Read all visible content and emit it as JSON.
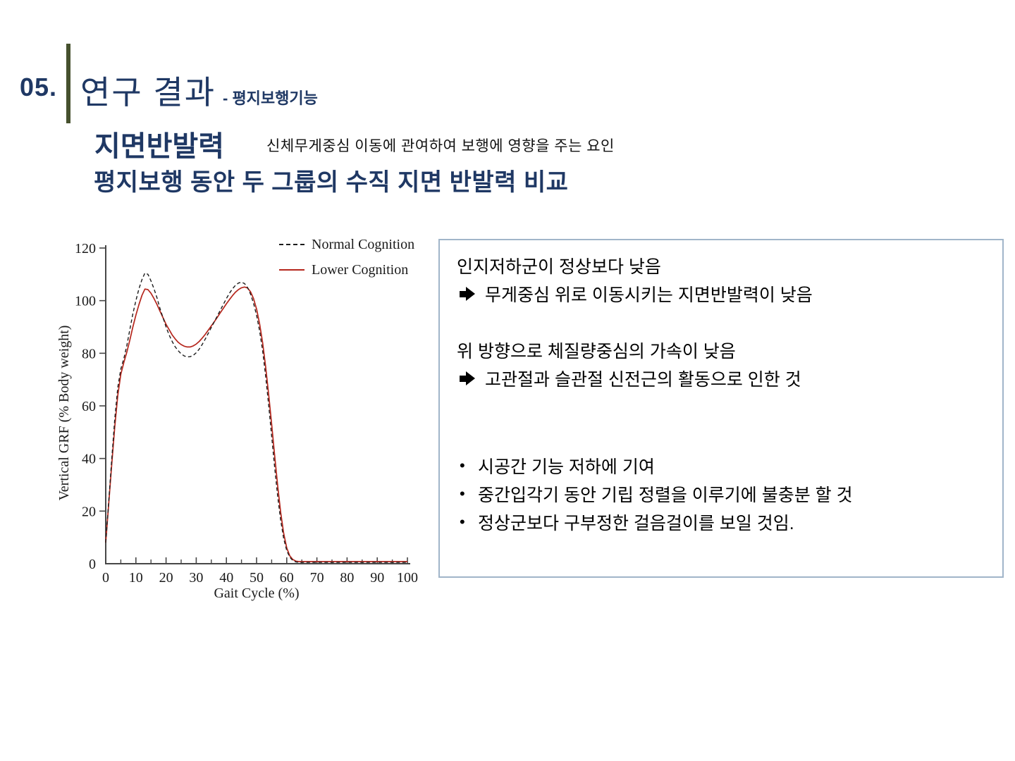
{
  "header": {
    "number": "05.",
    "title": "연구 결과",
    "subtitle": "- 평지보행기능"
  },
  "section": {
    "keyword": "지면반발력",
    "note": "신체무게중심 이동에 관여하여 보행에 영향을 주는 요인",
    "subtitle": "평지보행 동안 두 그룹의 수직 지면 반발력 비교"
  },
  "colors": {
    "navy": "#1f3864",
    "olive_bar": "#46512e",
    "axis": "#474747",
    "normal_line": "#1c1c1c",
    "lower_line": "#b5261c",
    "box_border": "#a1b5c9"
  },
  "chart_data": {
    "type": "line",
    "title": "",
    "xlabel": "Gait Cycle (%)",
    "ylabel": "Vertical GRF (% Body weight)",
    "xlim": [
      0,
      100
    ],
    "ylim": [
      0,
      120
    ],
    "x_ticks": [
      0,
      10,
      20,
      30,
      40,
      50,
      60,
      70,
      80,
      90,
      100
    ],
    "x_minor_step": 5,
    "y_ticks": [
      0,
      20,
      40,
      60,
      80,
      100,
      120
    ],
    "grid": false,
    "legend_position": "top-right",
    "series": [
      {
        "name": "Normal Cognition",
        "style": "dashed",
        "color": "#1c1c1c",
        "points": [
          [
            0,
            8
          ],
          [
            1,
            24
          ],
          [
            2,
            40
          ],
          [
            3,
            55
          ],
          [
            4,
            67
          ],
          [
            5,
            74
          ],
          [
            6,
            78
          ],
          [
            7,
            83
          ],
          [
            8,
            89
          ],
          [
            9,
            95
          ],
          [
            10,
            100
          ],
          [
            11,
            104.5
          ],
          [
            12,
            108
          ],
          [
            13,
            110.5
          ],
          [
            14,
            110
          ],
          [
            15,
            107.5
          ],
          [
            16,
            104.5
          ],
          [
            17,
            101
          ],
          [
            18,
            97
          ],
          [
            19,
            93.5
          ],
          [
            20,
            90
          ],
          [
            21,
            87
          ],
          [
            22,
            84.5
          ],
          [
            23,
            82.5
          ],
          [
            24,
            81
          ],
          [
            25,
            79.8
          ],
          [
            26,
            79
          ],
          [
            27,
            78.6
          ],
          [
            28,
            78.7
          ],
          [
            29,
            79.2
          ],
          [
            30,
            80.2
          ],
          [
            31,
            81.6
          ],
          [
            32,
            83.4
          ],
          [
            33,
            85.4
          ],
          [
            34,
            87.6
          ],
          [
            35,
            89.8
          ],
          [
            36,
            92
          ],
          [
            37,
            94.2
          ],
          [
            38,
            96.4
          ],
          [
            39,
            98.6
          ],
          [
            40,
            100.8
          ],
          [
            41,
            102.8
          ],
          [
            42,
            104.5
          ],
          [
            43,
            105.8
          ],
          [
            44,
            106.7
          ],
          [
            45,
            107
          ],
          [
            46,
            106.5
          ],
          [
            47,
            105
          ],
          [
            48,
            102.5
          ],
          [
            49,
            99
          ],
          [
            50,
            94.5
          ],
          [
            51,
            88.5
          ],
          [
            52,
            81
          ],
          [
            53,
            71.5
          ],
          [
            54,
            60.5
          ],
          [
            55,
            48.5
          ],
          [
            56,
            36.5
          ],
          [
            57,
            25.5
          ],
          [
            58,
            16.5
          ],
          [
            59,
            9.5
          ],
          [
            60,
            5
          ],
          [
            61,
            2.5
          ],
          [
            62,
            1.2
          ],
          [
            63,
            0.7
          ],
          [
            64,
            0.5
          ],
          [
            70,
            0.5
          ],
          [
            80,
            0.5
          ],
          [
            90,
            0.5
          ],
          [
            100,
            0.5
          ]
        ]
      },
      {
        "name": "Lower Cognition",
        "style": "solid",
        "color": "#b5261c",
        "points": [
          [
            0,
            8
          ],
          [
            1,
            23
          ],
          [
            2,
            38
          ],
          [
            3,
            52
          ],
          [
            4,
            64
          ],
          [
            5,
            72
          ],
          [
            6,
            76.5
          ],
          [
            7,
            80.5
          ],
          [
            8,
            85
          ],
          [
            9,
            90
          ],
          [
            10,
            94.5
          ],
          [
            11,
            98.5
          ],
          [
            12,
            102
          ],
          [
            13,
            104.4
          ],
          [
            14,
            104.2
          ],
          [
            15,
            102.8
          ],
          [
            16,
            100.8
          ],
          [
            17,
            98.5
          ],
          [
            18,
            96
          ],
          [
            19,
            93.5
          ],
          [
            20,
            91
          ],
          [
            21,
            89
          ],
          [
            22,
            87
          ],
          [
            23,
            85.5
          ],
          [
            24,
            84.2
          ],
          [
            25,
            83.3
          ],
          [
            26,
            82.7
          ],
          [
            27,
            82.4
          ],
          [
            28,
            82.4
          ],
          [
            29,
            82.8
          ],
          [
            30,
            83.5
          ],
          [
            31,
            84.5
          ],
          [
            32,
            85.8
          ],
          [
            33,
            87.2
          ],
          [
            34,
            88.8
          ],
          [
            35,
            90.4
          ],
          [
            36,
            92
          ],
          [
            37,
            93.7
          ],
          [
            38,
            95.4
          ],
          [
            39,
            97.1
          ],
          [
            40,
            98.8
          ],
          [
            41,
            100.4
          ],
          [
            42,
            101.9
          ],
          [
            43,
            103.2
          ],
          [
            44,
            104.2
          ],
          [
            45,
            104.9
          ],
          [
            46,
            105.2
          ],
          [
            47,
            104.8
          ],
          [
            48,
            103.4
          ],
          [
            49,
            100.8
          ],
          [
            50,
            96.8
          ],
          [
            51,
            91.2
          ],
          [
            52,
            84
          ],
          [
            53,
            75
          ],
          [
            54,
            64.5
          ],
          [
            55,
            53
          ],
          [
            56,
            41
          ],
          [
            57,
            29.5
          ],
          [
            58,
            19.5
          ],
          [
            59,
            11.5
          ],
          [
            60,
            6
          ],
          [
            61,
            3
          ],
          [
            62,
            1.6
          ],
          [
            63,
            1
          ],
          [
            64,
            0.8
          ],
          [
            70,
            0.8
          ],
          [
            80,
            0.8
          ],
          [
            90,
            0.8
          ],
          [
            100,
            0.8
          ]
        ]
      }
    ]
  },
  "callout": {
    "para1": "인지저하군이 정상보다 낮음",
    "para1_sub": "무게중심 위로 이동시키는 지면반발력이 낮음",
    "para2": "위 방향으로 체질량중심의 가속이 낮음",
    "para2_sub": "고관절과 슬관절 신전근의 활동으로 인한 것",
    "bullet_glyph": "•",
    "bullets": [
      "시공간 기능 저하에 기여",
      "중간입각기 동안 기립 정렬을 이루기에 불충분 할 것",
      "정상군보다 구부정한 걸음걸이를 보일 것임."
    ]
  }
}
